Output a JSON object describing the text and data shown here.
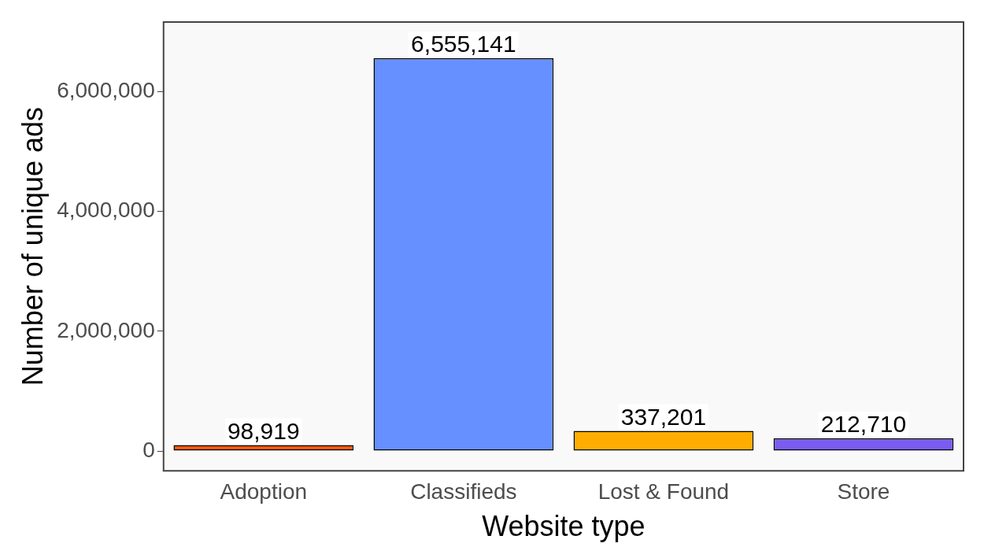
{
  "chart_data": {
    "type": "bar",
    "xlabel": "Website type",
    "ylabel": "Number of unique ads",
    "categories": [
      "Adoption",
      "Classifieds",
      "Lost & Found",
      "Store"
    ],
    "values": [
      98919,
      6555141,
      337201,
      212710
    ],
    "colors": [
      "#f25a0c",
      "#6690ff",
      "#ffad00",
      "#7b5cf0"
    ],
    "ylim": [
      -330000,
      7160000
    ],
    "yticks": [
      {
        "value": 0,
        "label": "0"
      },
      {
        "value": 2000000,
        "label": "2,000,000"
      },
      {
        "value": 4000000,
        "label": "4,000,000"
      },
      {
        "value": 6000000,
        "label": "6,000,000"
      }
    ],
    "value_labels": [
      "98,919",
      "6,555,141",
      "337,201",
      "212,710"
    ],
    "grid": false,
    "legend": false
  }
}
